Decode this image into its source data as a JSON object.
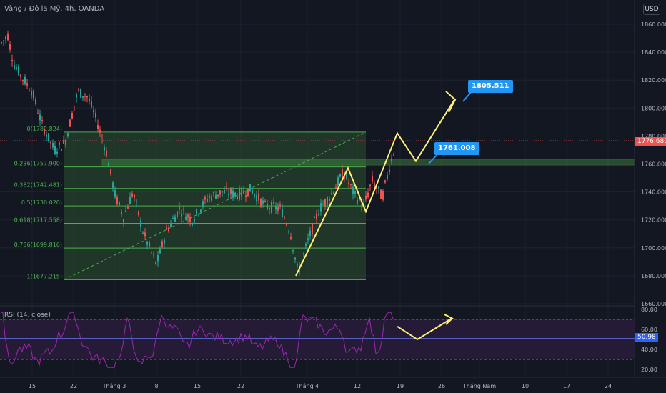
{
  "header": {
    "title": "Vàng / Đô la Mỹ, 4h, OANDA",
    "currency": "USD"
  },
  "rsi": {
    "title": "RSI (14, close)",
    "value": "50.98",
    "ticks": [
      "80.00",
      "60.00",
      "40.00",
      "20.00"
    ]
  },
  "price_axis": [
    "1860.000",
    "1840.000",
    "1820.000",
    "1800.000",
    "1780.000",
    "1760.000",
    "1740.000",
    "1720.000",
    "1700.000",
    "1680.000",
    "1660.000"
  ],
  "time_axis": [
    "15",
    "22",
    "Tháng 3",
    "8",
    "15",
    "22",
    "Tháng 4",
    "12",
    "19",
    "26",
    "Tháng Năm",
    "10",
    "17",
    "24"
  ],
  "fib_levels": [
    "0(1782.824)",
    "0.236(1757.900)",
    "0.382(1742.481)",
    "0.5(1730.020)",
    "0.618(1717.558)",
    "0.786(1699.816)",
    "1(1677.215)"
  ],
  "callouts": {
    "target_high": "1805.511",
    "target_low": "1761.008"
  },
  "current_price": "1776.680",
  "colors": {
    "bg": "#131722",
    "up": "#26a69a",
    "down": "#ef5350",
    "fib": "#4caf50",
    "projection": "#fff176",
    "callout": "#2196f3",
    "rsi_line": "#9c27b0",
    "rsi_band": "#2a1d3d"
  }
}
